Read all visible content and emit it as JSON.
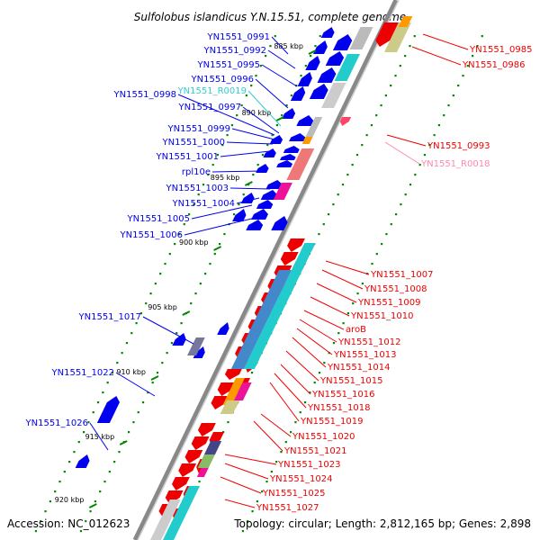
{
  "title": "Sulfolobus islandicus Y.N.15.51, complete genome",
  "footer": {
    "accession": "Accession: NC_012623",
    "topology": "Topology: circular; Length: 2,812,165 bp; Genes: 2,898"
  },
  "colors": {
    "plus_strand": "#0000ee",
    "minus_strand": "#ee0000",
    "rna_label": "#33cccc",
    "rna_label_minus": "#ff88aa",
    "backbone": "#888888",
    "tick": "#008800"
  },
  "ticks": [
    {
      "label": "885 kbp"
    },
    {
      "label": "890 kbp"
    },
    {
      "label": "895 kbp"
    },
    {
      "label": "900 kbp"
    },
    {
      "label": "905 kbp"
    },
    {
      "label": "910 kbp"
    },
    {
      "label": "915 kbp"
    },
    {
      "label": "920 kbp"
    }
  ],
  "left_labels": [
    {
      "text": "YN1551_0991"
    },
    {
      "text": "YN1551_0992"
    },
    {
      "text": "YN1551_0995"
    },
    {
      "text": "YN1551_0996"
    },
    {
      "text": "YN1551_0998"
    },
    {
      "text": "YN1551_R0019"
    },
    {
      "text": "YN1551_0997"
    },
    {
      "text": "YN1551_0999"
    },
    {
      "text": "YN1551_1000"
    },
    {
      "text": "YN1551_1001"
    },
    {
      "text": "rpl10e"
    },
    {
      "text": "YN1551_1003"
    },
    {
      "text": "YN1551_1004"
    },
    {
      "text": "YN1551_1005"
    },
    {
      "text": "YN1551_1006"
    },
    {
      "text": "YN1551_1017"
    },
    {
      "text": "YN1551_1022"
    },
    {
      "text": "YN1551_1026"
    }
  ],
  "right_labels": [
    {
      "text": "YN1551_0985"
    },
    {
      "text": "YN1551_0986"
    },
    {
      "text": "YN1551_0993"
    },
    {
      "text": "YN1551_R0018"
    },
    {
      "text": "YN1551_1007"
    },
    {
      "text": "YN1551_1008"
    },
    {
      "text": "YN1551_1009"
    },
    {
      "text": "YN1551_1010"
    },
    {
      "text": "aroB"
    },
    {
      "text": "YN1551_1012"
    },
    {
      "text": "YN1551_1013"
    },
    {
      "text": "YN1551_1014"
    },
    {
      "text": "YN1551_1015"
    },
    {
      "text": "YN1551_1016"
    },
    {
      "text": "YN1551_1018"
    },
    {
      "text": "YN1551_1019"
    },
    {
      "text": "YN1551_1020"
    },
    {
      "text": "YN1551_1021"
    },
    {
      "text": "YN1551_1023"
    },
    {
      "text": "YN1551_1024"
    },
    {
      "text": "YN1551_1025"
    },
    {
      "text": "YN1551_1027"
    }
  ]
}
